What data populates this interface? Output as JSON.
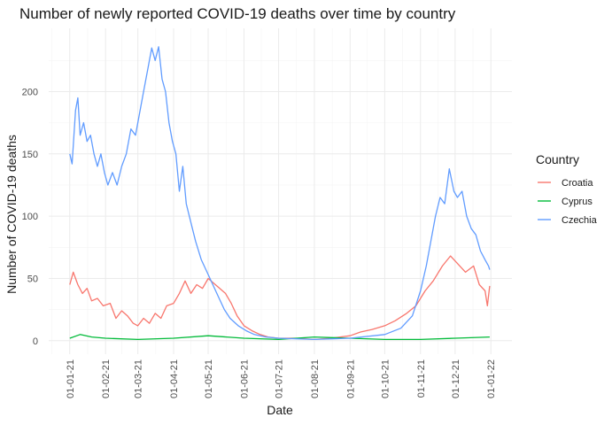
{
  "chart_data": {
    "type": "line",
    "title": "Number of newly reported COVID-19 deaths over time by country",
    "xlabel": "Date",
    "ylabel": "Number of COVID-19 deaths",
    "xlim": [
      "2021-01-01",
      "2022-01-01"
    ],
    "ylim": [
      0,
      240
    ],
    "x_ticks": [
      "2021-01-01",
      "2021-02-01",
      "2021-03-01",
      "2021-04-01",
      "2021-05-01",
      "2021-06-01",
      "2021-07-01",
      "2021-08-01",
      "2021-09-01",
      "2021-10-01",
      "2021-11-01",
      "2021-12-01",
      "2022-01-01"
    ],
    "x_tick_labels": [
      "01-01-21",
      "01-02-21",
      "01-03-21",
      "01-04-21",
      "01-05-21",
      "01-06-21",
      "01-07-21",
      "01-08-21",
      "01-09-21",
      "01-10-21",
      "01-11-21",
      "01-12-21",
      "01-01-22"
    ],
    "y_ticks": [
      0,
      50,
      100,
      150,
      200
    ],
    "grid": true,
    "legend": {
      "title": "Country",
      "placement": "right"
    },
    "series": [
      {
        "name": "Croatia",
        "color": "#F8766D",
        "points": [
          [
            "2021-01-01",
            45
          ],
          [
            "2021-01-04",
            55
          ],
          [
            "2021-01-08",
            45
          ],
          [
            "2021-01-12",
            38
          ],
          [
            "2021-01-16",
            42
          ],
          [
            "2021-01-20",
            32
          ],
          [
            "2021-01-25",
            34
          ],
          [
            "2021-01-30",
            28
          ],
          [
            "2021-02-05",
            30
          ],
          [
            "2021-02-10",
            18
          ],
          [
            "2021-02-15",
            24
          ],
          [
            "2021-02-20",
            20
          ],
          [
            "2021-02-25",
            14
          ],
          [
            "2021-03-01",
            12
          ],
          [
            "2021-03-06",
            18
          ],
          [
            "2021-03-11",
            14
          ],
          [
            "2021-03-16",
            22
          ],
          [
            "2021-03-21",
            18
          ],
          [
            "2021-03-26",
            28
          ],
          [
            "2021-04-01",
            30
          ],
          [
            "2021-04-06",
            38
          ],
          [
            "2021-04-11",
            48
          ],
          [
            "2021-04-16",
            38
          ],
          [
            "2021-04-21",
            45
          ],
          [
            "2021-04-26",
            42
          ],
          [
            "2021-05-01",
            50
          ],
          [
            "2021-05-06",
            46
          ],
          [
            "2021-05-11",
            42
          ],
          [
            "2021-05-16",
            38
          ],
          [
            "2021-05-21",
            30
          ],
          [
            "2021-05-26",
            20
          ],
          [
            "2021-06-01",
            12
          ],
          [
            "2021-06-08",
            8
          ],
          [
            "2021-06-15",
            5
          ],
          [
            "2021-06-22",
            3
          ],
          [
            "2021-07-01",
            2
          ],
          [
            "2021-07-15",
            2
          ],
          [
            "2021-08-01",
            1
          ],
          [
            "2021-08-15",
            2
          ],
          [
            "2021-09-01",
            4
          ],
          [
            "2021-09-10",
            7
          ],
          [
            "2021-09-20",
            9
          ],
          [
            "2021-10-01",
            12
          ],
          [
            "2021-10-10",
            16
          ],
          [
            "2021-10-20",
            22
          ],
          [
            "2021-10-28",
            28
          ],
          [
            "2021-11-05",
            40
          ],
          [
            "2021-11-12",
            48
          ],
          [
            "2021-11-20",
            60
          ],
          [
            "2021-11-27",
            68
          ],
          [
            "2021-12-03",
            62
          ],
          [
            "2021-12-10",
            55
          ],
          [
            "2021-12-17",
            60
          ],
          [
            "2021-12-22",
            45
          ],
          [
            "2021-12-27",
            40
          ],
          [
            "2021-12-29",
            28
          ],
          [
            "2021-12-31",
            44
          ]
        ]
      },
      {
        "name": "Cyprus",
        "color": "#00BA38",
        "points": [
          [
            "2021-01-01",
            2
          ],
          [
            "2021-01-10",
            5
          ],
          [
            "2021-01-20",
            3
          ],
          [
            "2021-02-01",
            2
          ],
          [
            "2021-03-01",
            1
          ],
          [
            "2021-04-01",
            2
          ],
          [
            "2021-05-01",
            4
          ],
          [
            "2021-06-01",
            2
          ],
          [
            "2021-07-01",
            1
          ],
          [
            "2021-08-01",
            3
          ],
          [
            "2021-09-01",
            2
          ],
          [
            "2021-10-01",
            1
          ],
          [
            "2021-11-01",
            1
          ],
          [
            "2021-12-01",
            2
          ],
          [
            "2021-12-31",
            3
          ]
        ]
      },
      {
        "name": "Czechia",
        "color": "#619CFF",
        "points": [
          [
            "2021-01-01",
            150
          ],
          [
            "2021-01-03",
            142
          ],
          [
            "2021-01-06",
            185
          ],
          [
            "2021-01-08",
            195
          ],
          [
            "2021-01-10",
            165
          ],
          [
            "2021-01-13",
            175
          ],
          [
            "2021-01-16",
            160
          ],
          [
            "2021-01-19",
            165
          ],
          [
            "2021-01-22",
            150
          ],
          [
            "2021-01-25",
            140
          ],
          [
            "2021-01-28",
            150
          ],
          [
            "2021-01-31",
            135
          ],
          [
            "2021-02-03",
            125
          ],
          [
            "2021-02-07",
            135
          ],
          [
            "2021-02-11",
            125
          ],
          [
            "2021-02-15",
            140
          ],
          [
            "2021-02-19",
            150
          ],
          [
            "2021-02-23",
            170
          ],
          [
            "2021-02-27",
            165
          ],
          [
            "2021-03-02",
            180
          ],
          [
            "2021-03-06",
            200
          ],
          [
            "2021-03-10",
            220
          ],
          [
            "2021-03-13",
            235
          ],
          [
            "2021-03-16",
            225
          ],
          [
            "2021-03-19",
            236
          ],
          [
            "2021-03-22",
            210
          ],
          [
            "2021-03-25",
            200
          ],
          [
            "2021-03-28",
            175
          ],
          [
            "2021-03-31",
            160
          ],
          [
            "2021-04-03",
            150
          ],
          [
            "2021-04-06",
            120
          ],
          [
            "2021-04-09",
            140
          ],
          [
            "2021-04-12",
            110
          ],
          [
            "2021-04-16",
            95
          ],
          [
            "2021-04-20",
            80
          ],
          [
            "2021-04-25",
            65
          ],
          [
            "2021-04-30",
            55
          ],
          [
            "2021-05-05",
            45
          ],
          [
            "2021-05-10",
            35
          ],
          [
            "2021-05-15",
            25
          ],
          [
            "2021-05-20",
            18
          ],
          [
            "2021-05-27",
            12
          ],
          [
            "2021-06-03",
            8
          ],
          [
            "2021-06-10",
            5
          ],
          [
            "2021-06-20",
            3
          ],
          [
            "2021-07-01",
            2
          ],
          [
            "2021-08-01",
            1
          ],
          [
            "2021-09-01",
            2
          ],
          [
            "2021-10-01",
            5
          ],
          [
            "2021-10-15",
            10
          ],
          [
            "2021-10-25",
            20
          ],
          [
            "2021-11-01",
            40
          ],
          [
            "2021-11-06",
            60
          ],
          [
            "2021-11-10",
            80
          ],
          [
            "2021-11-14",
            100
          ],
          [
            "2021-11-18",
            115
          ],
          [
            "2021-11-22",
            110
          ],
          [
            "2021-11-26",
            138
          ],
          [
            "2021-11-30",
            120
          ],
          [
            "2021-12-03",
            115
          ],
          [
            "2021-12-07",
            120
          ],
          [
            "2021-12-11",
            100
          ],
          [
            "2021-12-15",
            90
          ],
          [
            "2021-12-19",
            85
          ],
          [
            "2021-12-23",
            72
          ],
          [
            "2021-12-27",
            65
          ],
          [
            "2021-12-30",
            60
          ],
          [
            "2021-12-31",
            57
          ]
        ]
      }
    ]
  }
}
